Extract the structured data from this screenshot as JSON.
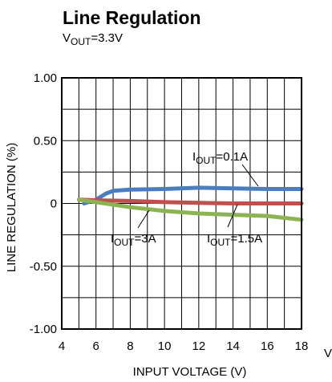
{
  "chart_data": {
    "type": "line",
    "title": "Line Regulation",
    "subtitle": {
      "v": "V",
      "sub": "OUT",
      "rest": "=3.3V"
    },
    "xlabel": "INPUT VOLTAGE (V)",
    "ylabel": "LINE REGULATION (%)",
    "xlim": [
      4,
      18
    ],
    "ylim": [
      -1.0,
      1.0
    ],
    "grid": true,
    "x_ticks": [
      4,
      6,
      8,
      10,
      12,
      14,
      16,
      18
    ],
    "x_tick_labels": [
      "4",
      "6",
      "8",
      "10",
      "12",
      "14",
      "16",
      "18"
    ],
    "y_ticks": [
      1.0,
      0.5,
      0,
      -0.5,
      -1.0
    ],
    "y_tick_labels": [
      "1.00",
      "0.50",
      "0",
      "-0.50",
      "-1.00"
    ],
    "partial_label": "V",
    "series": [
      {
        "name": "IOUT=0.1A",
        "label": {
          "i": "I",
          "sub": "OUT",
          "rest": "=0.1A"
        },
        "color": "#4a7ebf",
        "x": [
          5.3,
          6.0,
          6.6,
          7.0,
          8.0,
          10.0,
          12.0,
          14.0,
          16.0,
          18.0
        ],
        "y": [
          0.0,
          0.03,
          0.08,
          0.1,
          0.11,
          0.115,
          0.125,
          0.12,
          0.115,
          0.115
        ]
      },
      {
        "name": "IOUT=1.5A",
        "label": {
          "i": "I",
          "sub": "OUT",
          "rest": "=1.5A"
        },
        "color": "#c0504d",
        "x": [
          5.0,
          6.0,
          8.0,
          10.0,
          12.0,
          14.0,
          16.0,
          18.0
        ],
        "y": [
          0.03,
          0.025,
          0.02,
          0.01,
          0.005,
          0.0,
          0.0,
          0.0
        ]
      },
      {
        "name": "IOUT=3A",
        "label": {
          "i": "I",
          "sub": "OUT",
          "rest": "=3A"
        },
        "color": "#8db452",
        "x": [
          5.0,
          6.0,
          8.0,
          10.0,
          12.0,
          14.0,
          16.0,
          18.0
        ],
        "y": [
          0.03,
          0.01,
          -0.03,
          -0.06,
          -0.08,
          -0.09,
          -0.1,
          -0.13
        ]
      }
    ]
  }
}
